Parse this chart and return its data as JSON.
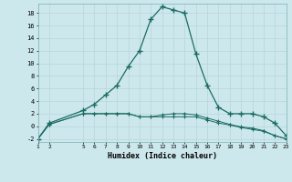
{
  "xlabel": "Humidex (Indice chaleur)",
  "bg_color": "#cde8ec",
  "grid_color": "#b8d5d8",
  "line_color": "#1a6b62",
  "xlim": [
    1,
    23
  ],
  "ylim": [
    -2.5,
    19.5
  ],
  "xticks": [
    1,
    2,
    5,
    6,
    7,
    8,
    9,
    10,
    11,
    12,
    13,
    14,
    15,
    16,
    17,
    18,
    19,
    20,
    21,
    22,
    23
  ],
  "yticks": [
    -2,
    0,
    2,
    4,
    6,
    8,
    10,
    12,
    14,
    16,
    18
  ],
  "line1_x": [
    1,
    2,
    5,
    6,
    7,
    8,
    9,
    10,
    11,
    12,
    13,
    14,
    15,
    16,
    17,
    18,
    19,
    20,
    21,
    22,
    23
  ],
  "line1_y": [
    -2,
    0.5,
    2.5,
    3.5,
    5.0,
    6.5,
    9.5,
    12.0,
    17.0,
    19.0,
    18.5,
    18.0,
    11.5,
    6.5,
    3.0,
    2.0,
    2.0,
    2.0,
    1.5,
    0.5,
    -1.5
  ],
  "line2_x": [
    1,
    2,
    5,
    6,
    7,
    8,
    9,
    10,
    11,
    12,
    13,
    14,
    15,
    16,
    17,
    18,
    19,
    20,
    21,
    22,
    23
  ],
  "line2_y": [
    -2.0,
    0.3,
    2.0,
    2.0,
    2.0,
    2.0,
    2.0,
    1.5,
    1.5,
    1.5,
    1.5,
    1.5,
    1.5,
    1.0,
    0.5,
    0.2,
    -0.2,
    -0.5,
    -0.8,
    -1.5,
    -2.0
  ],
  "line3_x": [
    1,
    2,
    5,
    6,
    7,
    8,
    9,
    10,
    11,
    12,
    13,
    14,
    15,
    16,
    17,
    18,
    19,
    20,
    21,
    22,
    23
  ],
  "line3_y": [
    -2.0,
    0.3,
    2.0,
    2.0,
    2.0,
    2.0,
    2.0,
    1.5,
    1.5,
    1.8,
    2.0,
    2.0,
    1.8,
    1.3,
    0.8,
    0.3,
    -0.1,
    -0.3,
    -0.7,
    -1.5,
    -2.0
  ]
}
